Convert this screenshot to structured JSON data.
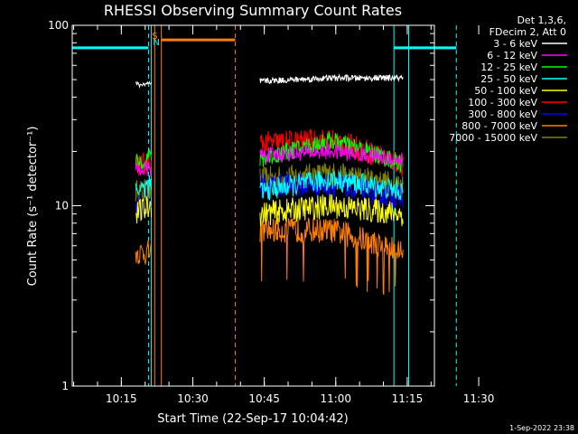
{
  "chart_data": {
    "type": "line",
    "title": "RHESSI Observing Summary Count Rates",
    "xlabel": "Start Time (22-Sep-17 10:04:42)",
    "ylabel": "Count Rate (s⁻¹ detector⁻¹)",
    "y_scale": "log",
    "ylim": [
      1,
      100
    ],
    "y_ticks": [
      {
        "value": 1,
        "label": "1"
      },
      {
        "value": 10,
        "label": "10"
      },
      {
        "value": 100,
        "label": "100"
      }
    ],
    "x_range_min": [
      0,
      76
    ],
    "x_ticks": [
      {
        "minutes": 10.3,
        "label": "10:15"
      },
      {
        "minutes": 25.3,
        "label": "10:30"
      },
      {
        "minutes": 40.3,
        "label": "10:45"
      },
      {
        "minutes": 55.3,
        "label": "11:00"
      },
      {
        "minutes": 70.3,
        "label": "11:15"
      },
      {
        "minutes": 85.3,
        "label": "11:30"
      }
    ],
    "legend": {
      "placement": "top-right",
      "header": [
        "Det 1,3,6,",
        "FDecim 2, Att 0"
      ]
    },
    "series": [
      {
        "name": "3 - 6 keV",
        "color": "#ffffff",
        "seg1": [
          47,
          47
        ],
        "seg2": [
          49,
          51,
          51
        ]
      },
      {
        "name": "6 - 12 keV",
        "color": "#ff00ff",
        "seg1": [
          16,
          16
        ],
        "seg2": [
          19,
          20,
          18
        ]
      },
      {
        "name": "12 - 25 keV",
        "color": "#00ff00",
        "seg1": [
          17,
          19
        ],
        "seg2": [
          18,
          23,
          17
        ]
      },
      {
        "name": "25 - 50 keV",
        "color": "#00ffff",
        "seg1": [
          12,
          13
        ],
        "seg2": [
          12,
          14,
          12
        ]
      },
      {
        "name": "50 - 100 keV",
        "color": "#ffff00",
        "seg1": [
          9,
          10
        ],
        "seg2": [
          9,
          10,
          9
        ]
      },
      {
        "name": "100 - 300 keV",
        "color": "#ff0000",
        "seg1": [
          17,
          17
        ],
        "seg2": [
          22,
          23,
          17
        ]
      },
      {
        "name": "300 - 800 keV",
        "color": "#0000ff",
        "seg1": [
          10,
          10
        ],
        "seg2": [
          13,
          13,
          11
        ]
      },
      {
        "name": "800 - 7000 keV",
        "color": "#ff8000",
        "seg1": [
          5.5,
          5.5
        ],
        "seg2": [
          7.3,
          7.3,
          5.5
        ]
      },
      {
        "name": "7000 - 15000 keV",
        "color": "#808000",
        "seg1": [
          12,
          12
        ],
        "seg2": [
          14,
          15,
          13
        ]
      }
    ],
    "data_segments_min": [
      [
        13.3,
        16.6
      ],
      [
        39.4,
        69.4
      ]
    ],
    "flags": [
      {
        "label": "S",
        "color": "#ff8000",
        "x_min": 17.3
      },
      {
        "label": "N",
        "color": "#00ffff",
        "x_min": 17.5
      }
    ],
    "attenuator_bar": {
      "color": "#ff8000",
      "x_min": [
        18.7,
        34.2
      ],
      "y": 83
    },
    "night_bars": {
      "color": "#00ffff",
      "y": 75,
      "ranges_min": [
        [
          0,
          16.0
        ],
        [
          67.5,
          80.6
        ]
      ]
    },
    "solid_lines": [
      {
        "color": "#00ffff",
        "x_min": 16.6
      },
      {
        "color": "#ff8000",
        "x_min": 17.3
      },
      {
        "color": "#ff8000",
        "x_min": 18.7
      },
      {
        "color": "#00ffff",
        "x_min": 67.5
      },
      {
        "color": "#00ffff",
        "x_min": 70.6
      }
    ],
    "dashed_lines": [
      {
        "color": "#00ffff",
        "x_min": 16.0
      },
      {
        "color": "#ff8000",
        "x_min": 34.2
      },
      {
        "color": "#00ffff",
        "x_min": 80.6
      }
    ],
    "timestamp": "1-Sep-2022 23:38"
  }
}
